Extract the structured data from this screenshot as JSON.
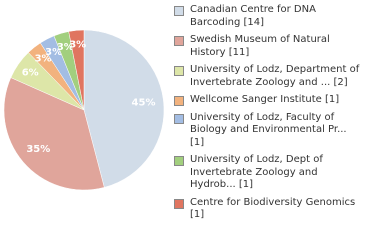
{
  "chart_data": {
    "type": "pie",
    "categories": [
      "Canadian Centre for DNA Barcoding [14]",
      "Swedish Museum of Natural History [11]",
      "University of Lodz, Department of Invertebrate Zoology and ... [2]",
      "Wellcome Sanger Institute [1]",
      "University of Lodz, Faculty of Biology and Environmental Pr... [1]",
      "University of Lodz, Dept of Invertebrate Zoology and Hydrob... [1]",
      "Centre for Biodiversity Genomics [1]"
    ],
    "values": [
      45,
      35,
      6,
      3,
      3,
      3,
      3
    ],
    "value_labels": [
      "45%",
      "35%",
      "6%",
      "3%",
      "3%",
      "3%",
      "3%"
    ],
    "colors": [
      "#d1dce8",
      "#e0a59b",
      "#dde6a8",
      "#f2b27e",
      "#a3bde3",
      "#a2cf7e",
      "#e07560"
    ]
  }
}
